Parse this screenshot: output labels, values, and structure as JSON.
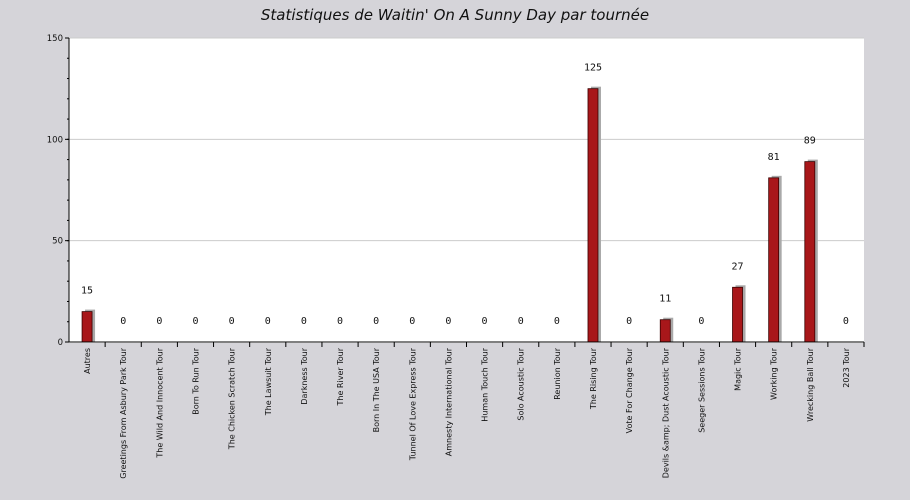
{
  "chart_data": {
    "type": "bar",
    "title": "Statistiques de Waitin' On A Sunny Day par tournée",
    "xlabel": "",
    "ylabel": "",
    "ylim": [
      0,
      150
    ],
    "yticks": [
      0,
      50,
      100,
      150
    ],
    "grid": true,
    "categories": [
      "Autres",
      "Greetings From Asbury Park Tour",
      "The Wild And Innocent Tour",
      "Born To Run Tour",
      "The Chicken Scratch Tour",
      "The Lawsuit Tour",
      "Darkness Tour",
      "The River Tour",
      "Born In The USA Tour",
      "Tunnel Of Love Express Tour",
      "Amnesty International Tour",
      "Human Touch Tour",
      "Solo Acoustic Tour",
      "Reunion Tour",
      "The Rising Tour",
      "Vote For Change Tour",
      "Devils &amp; Dust Acoustic Tour",
      "Seeger Sessions Tour",
      "Magic Tour",
      "Working Tour",
      "Wrecking Ball Tour",
      "2023 Tour"
    ],
    "values": [
      15,
      0,
      0,
      0,
      0,
      0,
      0,
      0,
      0,
      0,
      0,
      0,
      0,
      0,
      125,
      0,
      11,
      0,
      27,
      81,
      89,
      0
    ],
    "colors": {
      "bar": "#a8171a",
      "bar_shadow": "#a9a9a9",
      "plot_bg": "#ffffff",
      "page_bg": "#d5d4d9",
      "grid": "#cccccc"
    }
  }
}
